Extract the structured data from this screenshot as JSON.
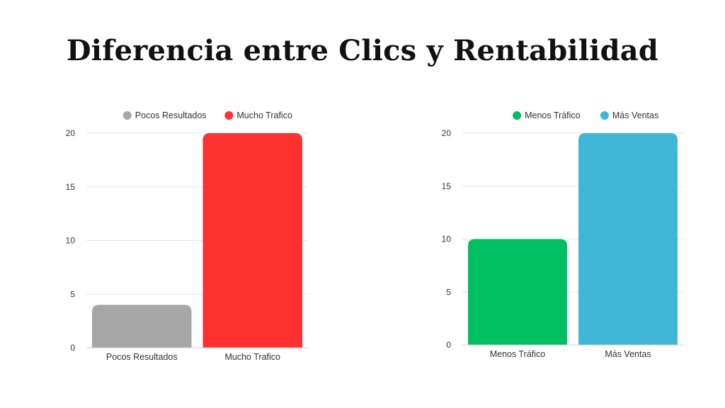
{
  "title": "Diferencia entre Clics y Rentabilidad",
  "chart_data": [
    {
      "type": "bar",
      "categories": [
        "Pocos Resultados",
        "Mucho Trafico"
      ],
      "values": [
        4,
        20
      ],
      "colors": [
        "#a6a6a6",
        "#ff3030"
      ],
      "legend": [
        "Pocos Resultados",
        "Mucho Trafico"
      ],
      "legend_position": "top",
      "ylim": [
        0,
        20
      ],
      "yticks": [
        0,
        5,
        10,
        15,
        20
      ],
      "grid": true
    },
    {
      "type": "bar",
      "categories": [
        "Menos Tráfico",
        "Más Ventas"
      ],
      "values": [
        10,
        20
      ],
      "colors": [
        "#00bf63",
        "#40b6d6"
      ],
      "legend": [
        "Menos Tráfico",
        "Más Ventas"
      ],
      "legend_position": "top",
      "ylim": [
        0,
        20
      ],
      "yticks": [
        0,
        5,
        10,
        15,
        20
      ],
      "grid": true
    }
  ]
}
